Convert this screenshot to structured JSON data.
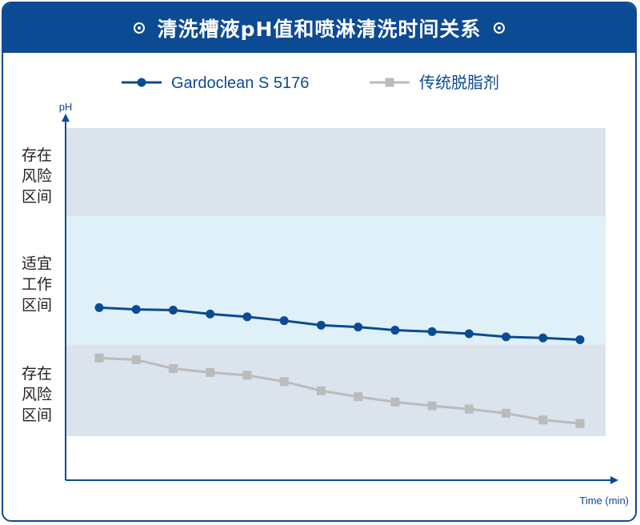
{
  "title": "清洗槽液pH值和喷淋清洗时间关系",
  "colors": {
    "brand": "#0c4a93",
    "series_gardoclean": "#0c4a93",
    "series_conventional": "#bbbbbb",
    "risk_zone": "#dbe3ed",
    "suitable_zone": "#dff0f8",
    "axis": "#0c4a93"
  },
  "chart_data": {
    "type": "line",
    "title": "清洗槽液pH值和喷淋清洗时间关系",
    "xlabel": "Time (min)",
    "ylabel": "pH",
    "legend_position": "top",
    "grid": false,
    "zones": [
      {
        "label": [
          "存在",
          "风险",
          "区间"
        ],
        "kind": "risk",
        "range": [
          0,
          25
        ]
      },
      {
        "label": [
          "适宜",
          "工作",
          "区间"
        ],
        "kind": "suitable",
        "range": [
          25,
          61.5
        ]
      },
      {
        "label": [
          "存在",
          "风险",
          "区间"
        ],
        "kind": "risk",
        "range": [
          61.5,
          87.5
        ]
      }
    ],
    "ylim": [
      0,
      100
    ],
    "x": [
      1,
      2,
      3,
      4,
      5,
      6,
      7,
      8,
      9,
      10,
      11,
      12,
      13,
      14
    ],
    "series": [
      {
        "name": "Gardoclean S 5176",
        "marker": "circle",
        "values": [
          51,
          51.5,
          51.7,
          52.8,
          53.6,
          54.7,
          56,
          56.5,
          57.4,
          57.8,
          58.4,
          59.3,
          59.6,
          60.1
        ]
      },
      {
        "name": "传统脱脂剂",
        "marker": "square",
        "values": [
          65.3,
          65.8,
          68.3,
          69.4,
          70.2,
          72,
          74.6,
          76.3,
          77.8,
          78.9,
          79.8,
          81,
          82.9,
          83.9
        ]
      }
    ]
  }
}
